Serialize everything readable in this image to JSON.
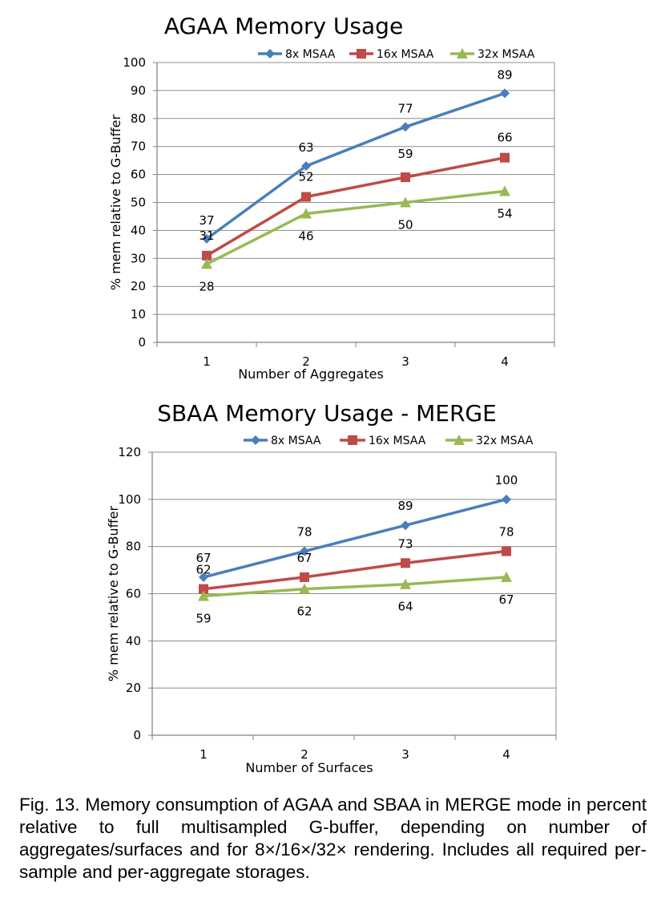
{
  "chart_data": [
    {
      "type": "line",
      "title": "AGAA Memory Usage",
      "xlabel": "Number of Aggregates",
      "ylabel": "% mem relative to G-Buffer",
      "categories": [
        "1",
        "2",
        "3",
        "4"
      ],
      "ylim": [
        0,
        100
      ],
      "yticks": [
        0,
        10,
        20,
        30,
        40,
        50,
        60,
        70,
        80,
        90,
        100
      ],
      "grid": true,
      "legend": "top-right",
      "series": [
        {
          "name": "8x MSAA",
          "values": [
            37,
            63,
            77,
            89
          ],
          "labels": [
            "37",
            "63",
            "77",
            "89"
          ],
          "color": "#4a7ebb",
          "marker": "diamond"
        },
        {
          "name": "16x MSAA",
          "values": [
            31,
            52,
            59,
            66
          ],
          "labels": [
            "31",
            "52",
            "59",
            "66"
          ],
          "color": "#be4b48",
          "marker": "square"
        },
        {
          "name": "32x MSAA",
          "values": [
            28,
            46,
            50,
            54
          ],
          "labels": [
            "28",
            "46",
            "50",
            "54"
          ],
          "color": "#98b954",
          "marker": "triangle"
        }
      ]
    },
    {
      "type": "line",
      "title": "SBAA Memory Usage - MERGE",
      "xlabel": "Number of Surfaces",
      "ylabel": "% mem relative to G-Buffer",
      "categories": [
        "1",
        "2",
        "3",
        "4"
      ],
      "ylim": [
        0,
        120
      ],
      "yticks": [
        0,
        20,
        40,
        60,
        80,
        100,
        120
      ],
      "grid": true,
      "legend": "top-right",
      "series": [
        {
          "name": "8x MSAA",
          "values": [
            67,
            78,
            89,
            100
          ],
          "labels": [
            "67",
            "78",
            "89",
            "100"
          ],
          "color": "#4a7ebb",
          "marker": "diamond"
        },
        {
          "name": "16x MSAA",
          "values": [
            62,
            67,
            73,
            78
          ],
          "labels": [
            "62",
            "67",
            "73",
            "78"
          ],
          "color": "#be4b48",
          "marker": "square"
        },
        {
          "name": "32x MSAA",
          "values": [
            59,
            62,
            64,
            67
          ],
          "labels": [
            "59",
            "62",
            "64",
            "67"
          ],
          "color": "#98b954",
          "marker": "triangle"
        }
      ]
    }
  ],
  "caption": "Fig. 13. Memory consumption of AGAA and SBAA in MERGE mode in percent relative to full multisampled G-buffer, depending on number of aggregates/surfaces and for 8×/16×/32× rendering. Includes all required per-sample and per-aggregate storages."
}
